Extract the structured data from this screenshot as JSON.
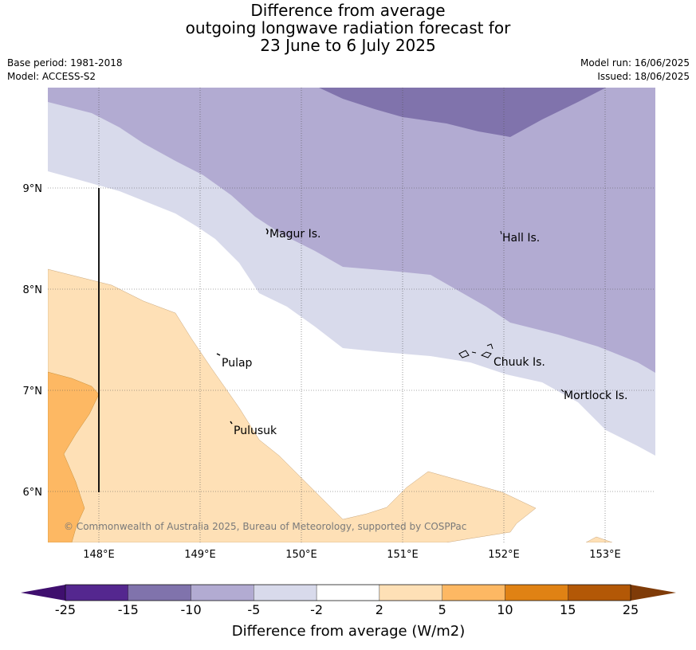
{
  "title": {
    "line1": "Difference from average",
    "line2": "outgoing longwave radiation forecast for",
    "line3": "23 June to 6 July 2025"
  },
  "meta": {
    "base_period": "Base period: 1981-2018",
    "model": "Model: ACCESS-S2",
    "model_run": "Model run: 16/06/2025",
    "issued": "Issued: 18/06/2025"
  },
  "map": {
    "lon_ticks": [
      "148°E",
      "149°E",
      "150°E",
      "151°E",
      "152°E",
      "153°E"
    ],
    "lat_ticks": [
      "9°N",
      "8°N",
      "7°N",
      "6°N"
    ],
    "places": [
      "Magur Is.",
      "Hall Is.",
      "Pulap",
      "Chuuk Is.",
      "Mortlock Is.",
      "Pulusuk"
    ],
    "copyright": "© Commonwealth of Australia 2025, Bureau of Meteorology, supported by COSPPac"
  },
  "colorbar": {
    "label": "Difference from average (W/m2)",
    "ticks": [
      "-25",
      "-15",
      "-10",
      "-5",
      "-2",
      "2",
      "5",
      "10",
      "15",
      "25"
    ],
    "colors": [
      "#3f0f6e",
      "#54278f",
      "#8073ac",
      "#b2abd2",
      "#d8daeb",
      "#ffffff",
      "#fee0b6",
      "#fdb863",
      "#e08214",
      "#b35806",
      "#7f3b08"
    ]
  }
}
